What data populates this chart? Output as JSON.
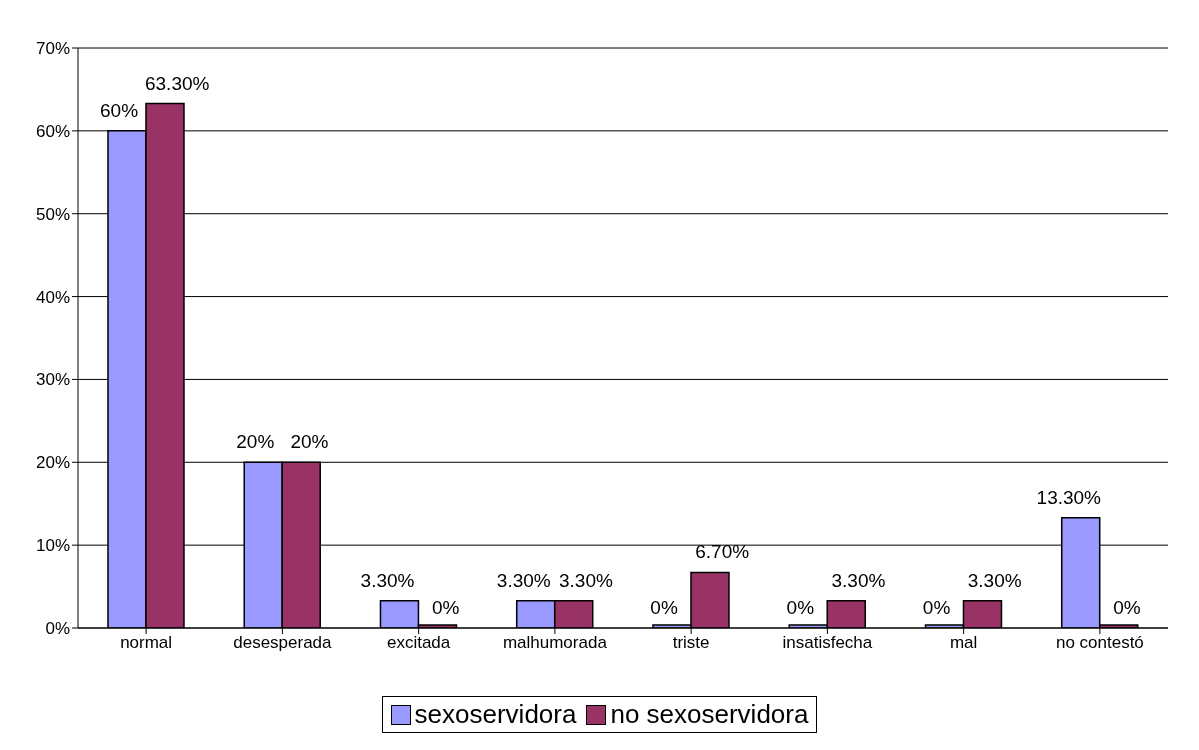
{
  "chart_data": {
    "type": "bar",
    "categories": [
      "normal",
      "desesperada",
      "excitada",
      "malhumorada",
      "triste",
      "insatisfecha",
      "mal",
      "no contestó"
    ],
    "series": [
      {
        "name": "sexoservidora",
        "color": "#9999ff",
        "values": [
          60,
          20,
          3.3,
          3.3,
          0,
          0,
          0,
          13.3
        ],
        "value_labels": [
          "60%",
          "20%",
          "3.30%",
          "3.30%",
          "0%",
          "0%",
          "0%",
          "13.30%"
        ]
      },
      {
        "name": "no sexoservidora",
        "color": "#993366",
        "values": [
          63.3,
          20,
          0,
          3.3,
          6.7,
          3.3,
          3.3,
          0
        ],
        "value_labels": [
          "63.30%",
          "20%",
          "0%",
          "3.30%",
          "6.70%",
          "3.30%",
          "3.30%",
          "0%"
        ]
      }
    ],
    "ylim": [
      0,
      70
    ],
    "yticks": [
      {
        "value": 0,
        "label": "0%"
      },
      {
        "value": 10,
        "label": "10%"
      },
      {
        "value": 20,
        "label": "20%"
      },
      {
        "value": 30,
        "label": "30%"
      },
      {
        "value": 40,
        "label": "40%"
      },
      {
        "value": 50,
        "label": "50%"
      },
      {
        "value": 60,
        "label": "60%"
      },
      {
        "value": 70,
        "label": "70%"
      }
    ],
    "grid": "y",
    "legend": "bottom"
  }
}
